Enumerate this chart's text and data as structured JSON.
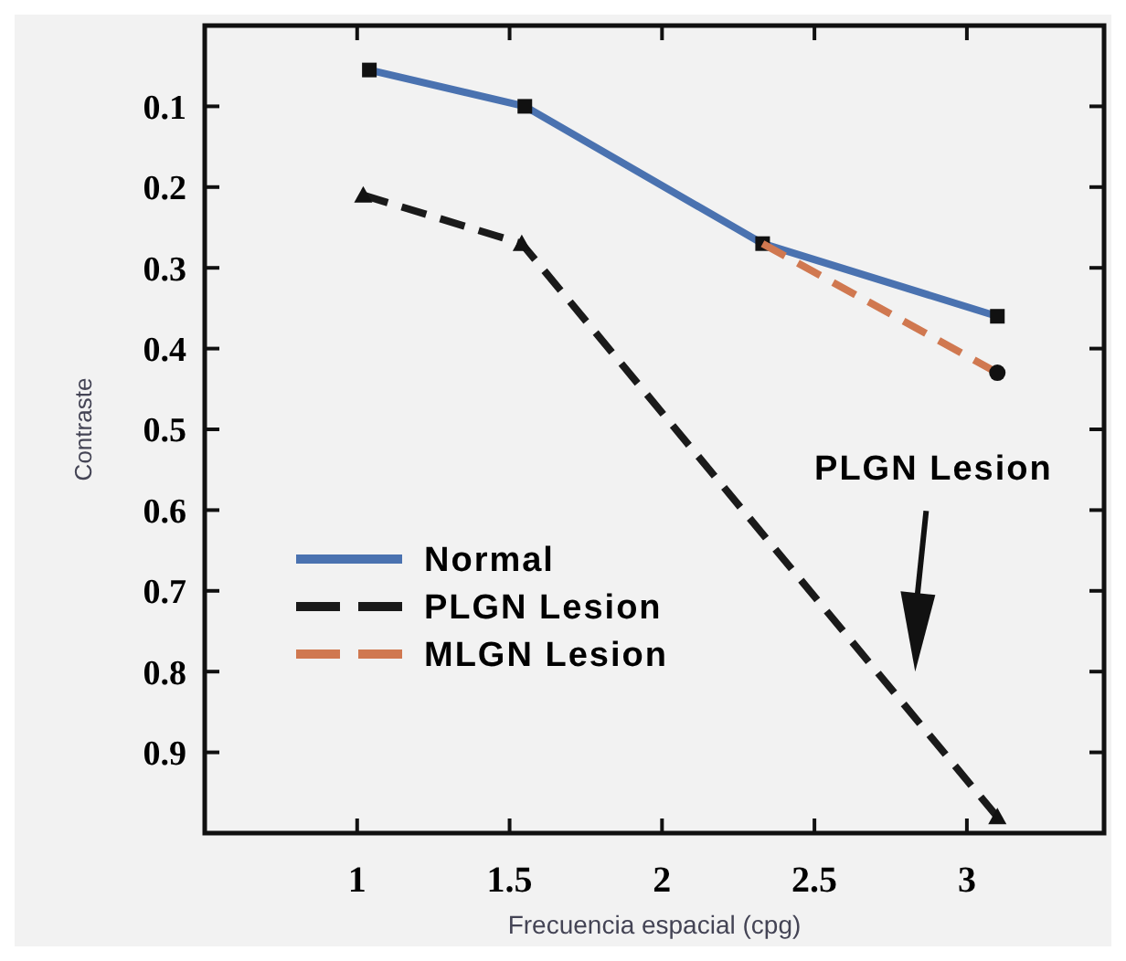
{
  "chart_data": {
    "type": "line",
    "xlabel": "Frecuencia espacial (cpg)",
    "ylabel": "Contraste",
    "xlim": [
      0.5,
      3.45
    ],
    "xticks": [
      1,
      1.5,
      2,
      2.5,
      3
    ],
    "ylim": [
      1,
      0
    ],
    "yticks": [
      0.1,
      0.2,
      0.3,
      0.4,
      0.5,
      0.6,
      0.7,
      0.8,
      0.9
    ],
    "grid": false,
    "legend": "bottom left",
    "series": [
      {
        "name": "Normal",
        "color": "#4a72b0",
        "line_style": "solid",
        "marker": "square",
        "x": [
          1.04,
          1.55,
          2.33,
          3.1
        ],
        "values": [
          0.055,
          0.1,
          0.27,
          0.36
        ]
      },
      {
        "name": "PLGN Lesion",
        "color": "#1a1a1a",
        "line_style": "dashed",
        "marker": "triangle",
        "x": [
          1.02,
          1.54,
          3.1
        ],
        "values": [
          0.21,
          0.27,
          0.98
        ]
      },
      {
        "name": "MLGN Lesion",
        "color": "#d07850",
        "line_style": "dashed",
        "marker": "circle",
        "x": [
          2.33,
          3.1
        ],
        "values": [
          0.27,
          0.43
        ]
      }
    ],
    "annotations": [
      "PLGN Lesion"
    ]
  }
}
